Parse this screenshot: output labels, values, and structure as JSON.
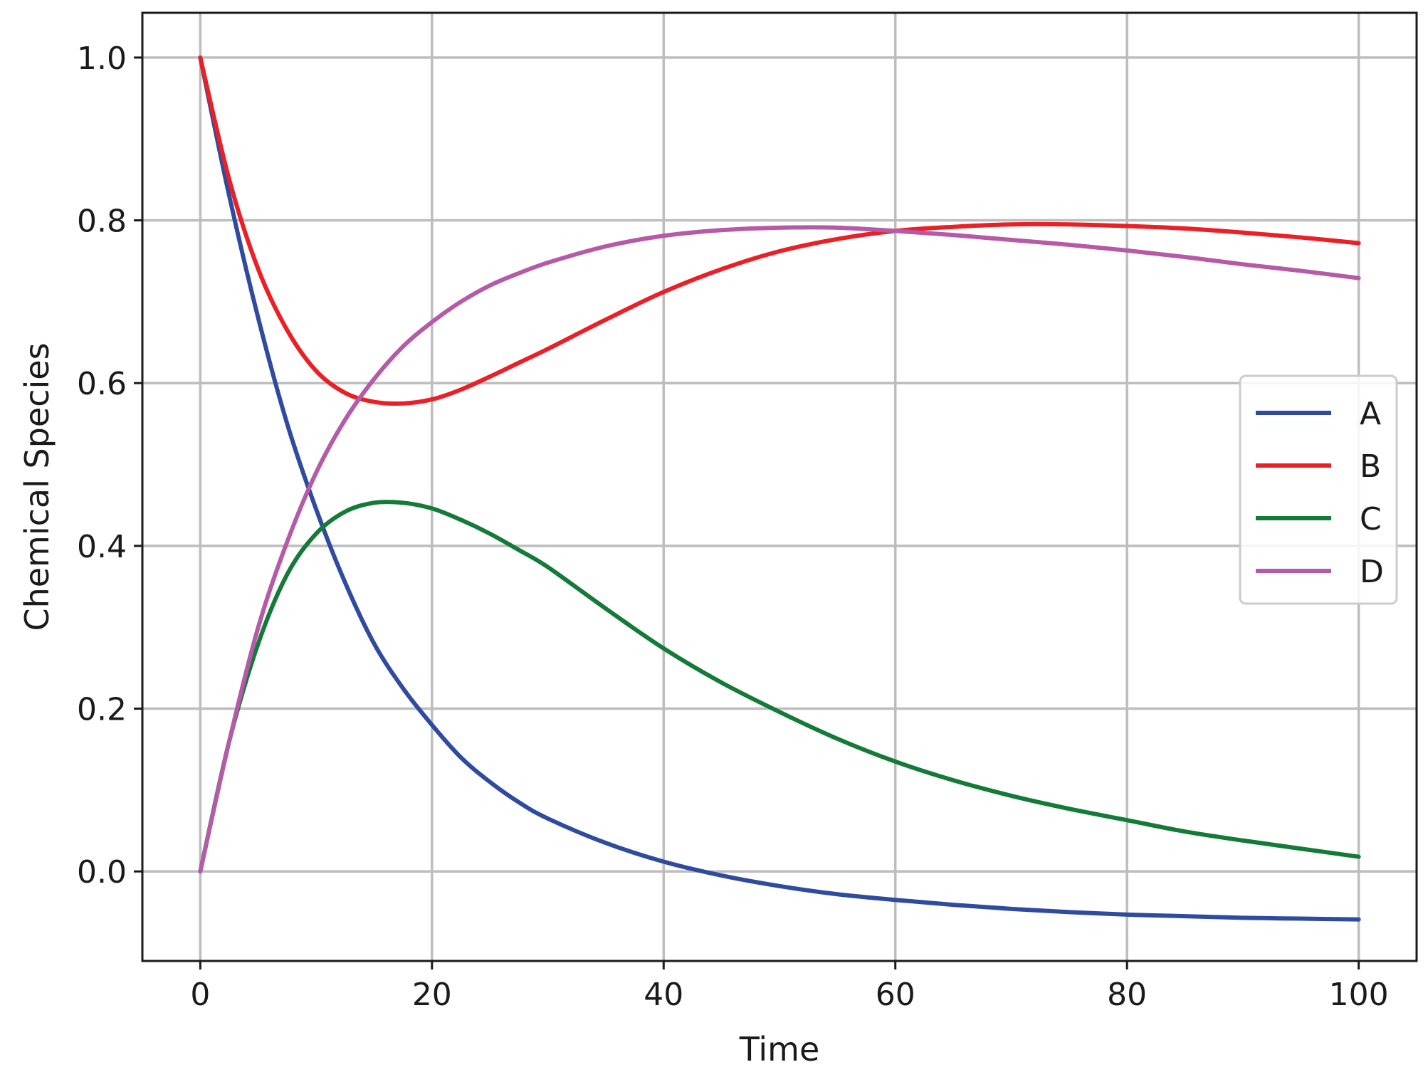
{
  "chart_data": {
    "type": "line",
    "title": "",
    "xlabel": "Time",
    "ylabel": "Chemical Species",
    "xlim": [
      -5,
      105
    ],
    "ylim": [
      -0.11,
      1.055
    ],
    "xticks": [
      0,
      20,
      40,
      60,
      80,
      100
    ],
    "yticks": [
      0.0,
      0.2,
      0.4,
      0.6,
      0.8,
      1.0
    ],
    "xtick_labels": [
      "0",
      "20",
      "40",
      "60",
      "80",
      "100"
    ],
    "ytick_labels": [
      "0.0",
      "0.2",
      "0.4",
      "0.6",
      "0.8",
      "1.0"
    ],
    "grid": true,
    "legend_position": "center-right",
    "x": [
      0,
      2.5,
      5,
      7.5,
      10,
      12.5,
      15,
      17.5,
      20,
      22.5,
      25,
      27.5,
      30,
      35,
      40,
      45,
      50,
      55,
      60,
      65,
      70,
      75,
      80,
      85,
      90,
      95,
      100
    ],
    "series": [
      {
        "name": "A",
        "color": "#2f4ba0",
        "values": [
          1.0,
          0.83,
          0.68,
          0.55,
          0.445,
          0.355,
          0.28,
          0.225,
          0.18,
          0.14,
          0.11,
          0.085,
          0.065,
          0.035,
          0.012,
          -0.005,
          -0.018,
          -0.028,
          -0.035,
          -0.041,
          -0.046,
          -0.05,
          -0.053,
          -0.055,
          -0.057,
          -0.058,
          -0.059
        ]
      },
      {
        "name": "B",
        "color": "#eb1f25",
        "values": [
          1.0,
          0.85,
          0.74,
          0.665,
          0.615,
          0.588,
          0.577,
          0.575,
          0.58,
          0.592,
          0.608,
          0.625,
          0.642,
          0.678,
          0.712,
          0.74,
          0.762,
          0.777,
          0.787,
          0.792,
          0.795,
          0.795,
          0.793,
          0.79,
          0.785,
          0.779,
          0.772
        ]
      },
      {
        "name": "C",
        "color": "#137a37",
        "values": [
          0.0,
          0.16,
          0.28,
          0.365,
          0.415,
          0.442,
          0.453,
          0.453,
          0.446,
          0.432,
          0.415,
          0.395,
          0.374,
          0.323,
          0.274,
          0.232,
          0.196,
          0.163,
          0.135,
          0.112,
          0.093,
          0.077,
          0.063,
          0.049,
          0.038,
          0.028,
          0.018
        ]
      },
      {
        "name": "D",
        "color": "#b65aa8",
        "values": [
          0.0,
          0.16,
          0.3,
          0.405,
          0.49,
          0.555,
          0.605,
          0.645,
          0.675,
          0.7,
          0.72,
          0.735,
          0.748,
          0.768,
          0.781,
          0.788,
          0.791,
          0.791,
          0.787,
          0.782,
          0.776,
          0.77,
          0.763,
          0.755,
          0.746,
          0.738,
          0.729
        ]
      }
    ]
  }
}
